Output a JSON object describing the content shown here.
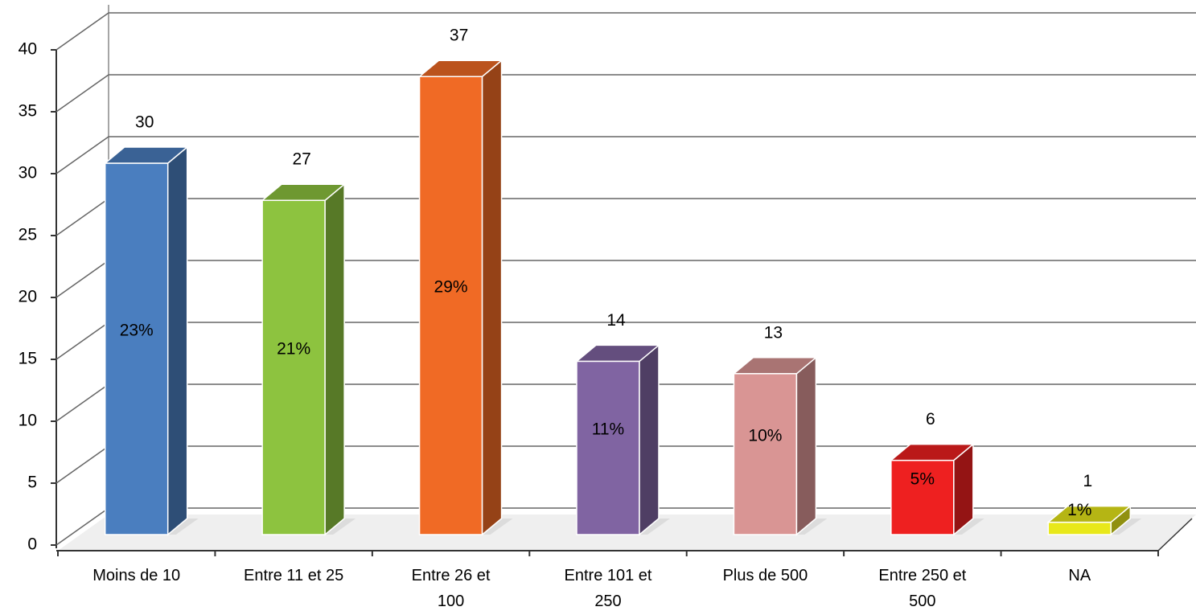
{
  "chart_data": {
    "type": "bar3d",
    "categories": [
      "Moins de 10",
      "Entre 11 et 25",
      "Entre 26 et 100",
      "Entre 101 et 250",
      "Plus de 500",
      "Entre 250 et 500",
      "NA"
    ],
    "values": [
      30,
      27,
      37,
      14,
      13,
      6,
      1
    ],
    "percentages": [
      "23%",
      "21%",
      "29%",
      "11%",
      "10%",
      "5%",
      "1%"
    ],
    "colors": [
      "#4a7ebf",
      "#8dc33f",
      "#f06a25",
      "#8064a2",
      "#d99594",
      "#ee2020",
      "#e8e81a"
    ],
    "ylim": [
      0,
      40
    ],
    "yticks": [
      0,
      5,
      10,
      15,
      20,
      25,
      30,
      35,
      40
    ],
    "grid": true
  }
}
